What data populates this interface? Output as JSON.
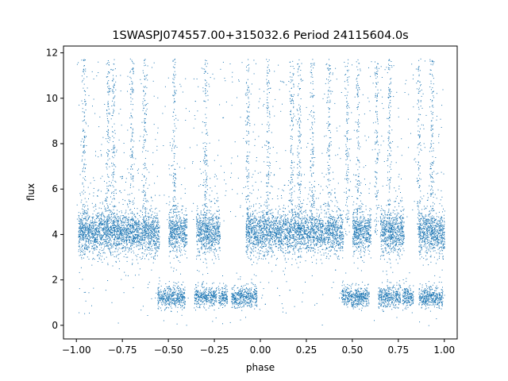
{
  "chart_data": {
    "type": "scatter",
    "title": "1SWASPJ074557.00+315032.6 Period 24115604.0s",
    "xlabel": "phase",
    "ylabel": "flux",
    "xlim": [
      -1.07,
      1.07
    ],
    "ylim": [
      -0.6,
      12.3
    ],
    "xticks": [
      -1.0,
      -0.75,
      -0.5,
      -0.25,
      0.0,
      0.25,
      0.5,
      0.75,
      1.0
    ],
    "xtick_labels": [
      "−1.00",
      "−0.75",
      "−0.50",
      "−0.25",
      "0.00",
      "0.25",
      "0.50",
      "0.75",
      "1.00"
    ],
    "yticks": [
      0,
      2,
      4,
      6,
      8,
      10,
      12
    ],
    "ytick_labels": [
      "0",
      "2",
      "4",
      "6",
      "8",
      "10",
      "12"
    ],
    "grid": false,
    "legend": "none",
    "marker_color": "#1f77b4",
    "series": [
      {
        "description_free": true,
        "high_state_ranges": [
          [
            -0.99,
            -0.55
          ],
          [
            -0.5,
            -0.4
          ],
          [
            -0.35,
            -0.22
          ],
          [
            -0.08,
            0.01
          ],
          [
            0.01,
            0.45
          ],
          [
            0.5,
            0.6
          ],
          [
            0.65,
            0.78
          ],
          [
            0.86,
            1.0
          ]
        ],
        "high_state_level": 4.1,
        "low_state_ranges": [
          [
            -0.56,
            -0.41
          ],
          [
            -0.36,
            -0.24
          ],
          [
            -0.23,
            -0.18
          ],
          [
            -0.16,
            -0.02
          ],
          [
            0.44,
            0.59
          ],
          [
            0.64,
            0.76
          ],
          [
            0.77,
            0.83
          ],
          [
            0.86,
            0.99
          ]
        ],
        "low_state_level": 1.25,
        "flare_phases": [
          -0.96,
          -0.83,
          -0.8,
          -0.7,
          -0.63,
          -0.47,
          -0.3,
          -0.07,
          0.04,
          0.17,
          0.21,
          0.28,
          0.37,
          0.47,
          0.53,
          0.63,
          0.7,
          0.86,
          0.93
        ]
      }
    ]
  }
}
